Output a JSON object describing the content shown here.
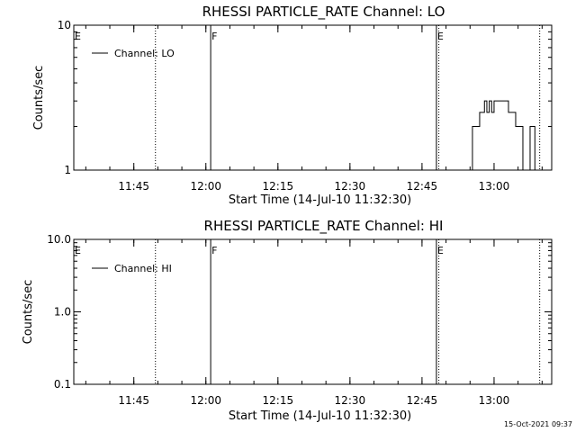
{
  "footer_timestamp": "15-Oct-2021 09:37",
  "chart_data": [
    {
      "type": "line",
      "title": "RHESSI PARTICLE_RATE Channel: LO",
      "xlabel": "Start Time (14-Jul-10 11:32:30)",
      "ylabel": "Counts/sec",
      "yscale": "log",
      "ylim": [
        1,
        10
      ],
      "yticks": [
        1,
        10
      ],
      "ytick_labels": [
        "1",
        "10"
      ],
      "xlim": [
        "11:32:30",
        "13:12:00"
      ],
      "xticks": [
        "11:45",
        "12:00",
        "12:15",
        "12:30",
        "12:45",
        "13:00"
      ],
      "legend": {
        "entries": [
          "Channel: LO"
        ],
        "placement": "top-left"
      },
      "markers": [
        {
          "label": "E",
          "time": "11:32:30",
          "style": "solid"
        },
        {
          "label": "F",
          "time": "12:01:00",
          "style": "solid"
        },
        {
          "label": "E",
          "time": "12:48:00",
          "style": "solid"
        }
      ],
      "dotted_lines": [
        "11:49:30",
        "12:48:30",
        "13:09:30"
      ],
      "series": [
        {
          "name": "Channel: LO",
          "x": [
            "12:54:00",
            "12:54:30",
            "12:55:00",
            "12:55:30",
            "12:56:00",
            "12:56:30",
            "12:57:00",
            "12:57:30",
            "12:58:00",
            "12:58:30",
            "12:59:00",
            "12:59:30",
            "13:00:00",
            "13:00:30",
            "13:01:00",
            "13:01:30",
            "13:02:00",
            "13:02:30",
            "13:03:00",
            "13:03:30",
            "13:04:00",
            "13:04:30",
            "13:05:00",
            "13:05:30",
            "13:06:00",
            "13:06:30",
            "13:07:00",
            "13:07:30",
            "13:08:00",
            "13:08:30",
            "13:09:00"
          ],
          "y": [
            1,
            1,
            1,
            2,
            2,
            2,
            2.5,
            2.5,
            3,
            2.5,
            3,
            2.5,
            3,
            3,
            3,
            3,
            3,
            3,
            2.5,
            2.5,
            2.5,
            2,
            2,
            2,
            1,
            1,
            1,
            2,
            2,
            1,
            1
          ]
        }
      ]
    },
    {
      "type": "line",
      "title": "RHESSI PARTICLE_RATE Channel: HI",
      "xlabel": "Start Time (14-Jul-10 11:32:30)",
      "ylabel": "Counts/sec",
      "yscale": "log",
      "ylim": [
        0.1,
        10
      ],
      "yticks": [
        0.1,
        1,
        10
      ],
      "ytick_labels": [
        "0.1",
        "1.0",
        "10.0"
      ],
      "xlim": [
        "11:32:30",
        "13:12:00"
      ],
      "xticks": [
        "11:45",
        "12:00",
        "12:15",
        "12:30",
        "12:45",
        "13:00"
      ],
      "legend": {
        "entries": [
          "Channel: HI"
        ],
        "placement": "top-left"
      },
      "markers": [
        {
          "label": "E",
          "time": "11:32:30",
          "style": "solid"
        },
        {
          "label": "F",
          "time": "12:01:00",
          "style": "solid"
        },
        {
          "label": "E",
          "time": "12:48:00",
          "style": "solid"
        }
      ],
      "dotted_lines": [
        "11:49:30",
        "12:48:30",
        "13:09:30"
      ],
      "series": [
        {
          "name": "Channel: HI",
          "x": [],
          "y": []
        }
      ]
    }
  ]
}
